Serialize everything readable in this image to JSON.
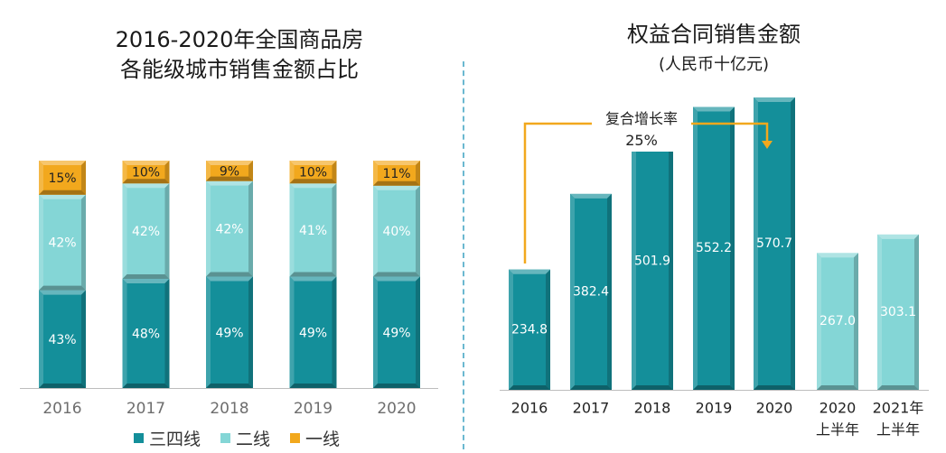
{
  "left_chart": {
    "title_line1": "2016-2020年全国商品房",
    "title_line2": "各能级城市销售金额占比"
  },
  "right_chart": {
    "title": "权益合同销售金额",
    "subtitle": "(人民币十亿元)",
    "annotation_line1": "复合增长率",
    "annotation_line2": "25%"
  },
  "legend": [
    {
      "label": "三四线",
      "color": "#148f9a"
    },
    {
      "label": "二线",
      "color": "#84d6d6"
    },
    {
      "label": "一线",
      "color": "#f2a81d"
    }
  ],
  "chart_data": [
    {
      "type": "bar",
      "stacked": true,
      "title": "2016-2020年全国商品房各能级城市销售金额占比",
      "categories": [
        "2016",
        "2017",
        "2018",
        "2019",
        "2020"
      ],
      "series": [
        {
          "name": "三四线",
          "values": [
            43,
            48,
            49,
            49,
            49
          ],
          "labels": [
            "43%",
            "48%",
            "49%",
            "49%",
            "49%"
          ],
          "color": "#148f9a"
        },
        {
          "name": "二线",
          "values": [
            42,
            42,
            42,
            41,
            40
          ],
          "labels": [
            "42%",
            "42%",
            "42%",
            "41%",
            "40%"
          ],
          "color": "#84d6d6"
        },
        {
          "name": "一线",
          "values": [
            15,
            10,
            9,
            10,
            11
          ],
          "labels": [
            "15%",
            "10%",
            "9%",
            "10%",
            "11%"
          ],
          "color": "#f2a81d"
        }
      ],
      "ylim": [
        0,
        100
      ],
      "legend_position": "bottom",
      "grid": false
    },
    {
      "type": "bar",
      "title": "权益合同销售金额",
      "ylabel": "(人民币十亿元)",
      "categories": [
        "2016",
        "2017",
        "2018",
        "2019",
        "2020",
        "2020\n上半年",
        "2021年\n上半年"
      ],
      "values": [
        234.8,
        382.4,
        501.9,
        552.2,
        570.7,
        267.0,
        303.1
      ],
      "value_labels": [
        "234.8",
        "382.4",
        "501.9",
        "552.2",
        "570.7",
        "267.0",
        "303.1"
      ],
      "colors": [
        "#148f9a",
        "#148f9a",
        "#148f9a",
        "#148f9a",
        "#148f9a",
        "#84d6d6",
        "#84d6d6"
      ],
      "ylim": [
        0,
        620
      ],
      "grid": false
    }
  ]
}
